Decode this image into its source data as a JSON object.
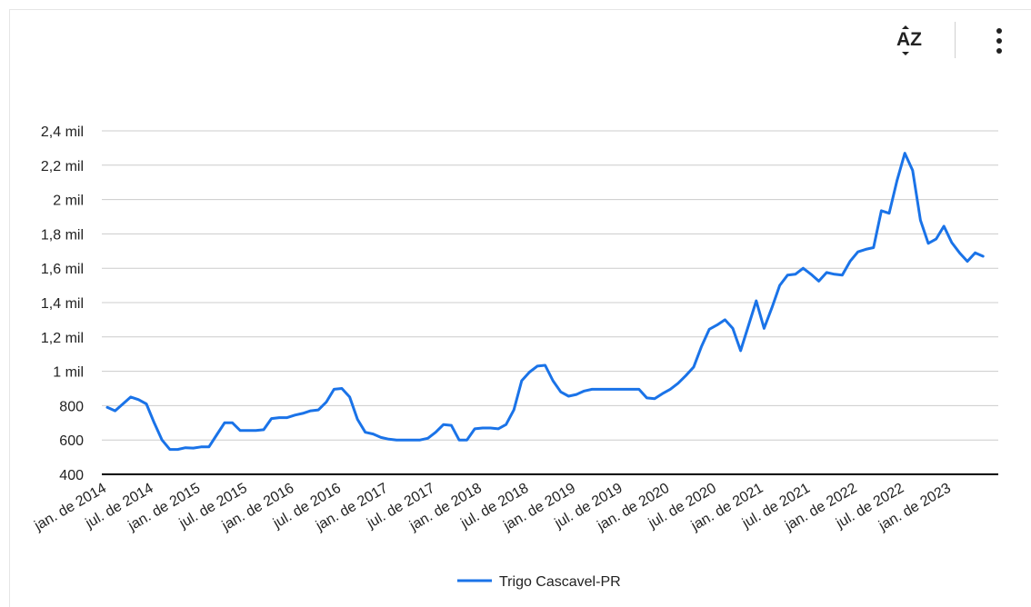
{
  "toolbar": {
    "sort_icon": "sort-az-icon",
    "sort_text": "AZ",
    "menu_icon": "more-vertical-icon"
  },
  "colors": {
    "series": "#1a73e8",
    "grid": "#cccccc",
    "axis": "#000000",
    "text": "#222222"
  },
  "chart_data": {
    "type": "line",
    "title": "",
    "xlabel": "",
    "ylabel": "",
    "ylim": [
      400,
      2400
    ],
    "yticks": [
      400,
      600,
      800,
      1000,
      1200,
      1400,
      1600,
      1800,
      2000,
      2200,
      2400
    ],
    "ytick_labels": [
      "400",
      "600",
      "800",
      "1 mil",
      "1,2 mil",
      "1,4 mil",
      "1,6 mil",
      "1,8 mil",
      "2 mil",
      "2,2 mil",
      "2,4 mil"
    ],
    "xtick_labels": [
      "jan. de 2014",
      "jul. de 2014",
      "jan. de 2015",
      "jul. de 2015",
      "jan. de 2016",
      "jul. de 2016",
      "jan. de 2017",
      "jul. de 2017",
      "jan. de 2018",
      "jul. de 2018",
      "jan. de 2019",
      "jul. de 2019",
      "jan. de 2020",
      "jul. de 2020",
      "jan. de 2021",
      "jul. de 2021",
      "jan. de 2022",
      "jul. de 2022",
      "jan. de 2023"
    ],
    "grid": true,
    "legend_position": "bottom",
    "series": [
      {
        "name": "Trigo Cascavel-PR",
        "color": "#1a73e8",
        "x_start": "2014-01",
        "values": [
          790,
          770,
          810,
          850,
          835,
          810,
          700,
          600,
          545,
          545,
          555,
          553,
          560,
          560,
          630,
          700,
          700,
          655,
          655,
          655,
          660,
          725,
          730,
          730,
          745,
          755,
          770,
          775,
          820,
          895,
          900,
          850,
          720,
          645,
          635,
          615,
          605,
          600,
          600,
          600,
          600,
          610,
          645,
          690,
          685,
          600,
          600,
          665,
          670,
          670,
          665,
          690,
          775,
          945,
          995,
          1030,
          1035,
          945,
          880,
          855,
          865,
          885,
          895,
          895,
          895,
          895,
          895,
          895,
          895,
          845,
          840,
          870,
          895,
          930,
          975,
          1025,
          1145,
          1245,
          1270,
          1300,
          1250,
          1120,
          1265,
          1410,
          1250,
          1370,
          1500,
          1560,
          1565,
          1600,
          1565,
          1525,
          1575,
          1565,
          1560,
          1640,
          1695,
          1710,
          1720,
          1935,
          1920,
          2110,
          2270,
          2170,
          1880,
          1745,
          1770,
          1845,
          1750,
          1690,
          1640,
          1690,
          1670
        ]
      }
    ]
  }
}
